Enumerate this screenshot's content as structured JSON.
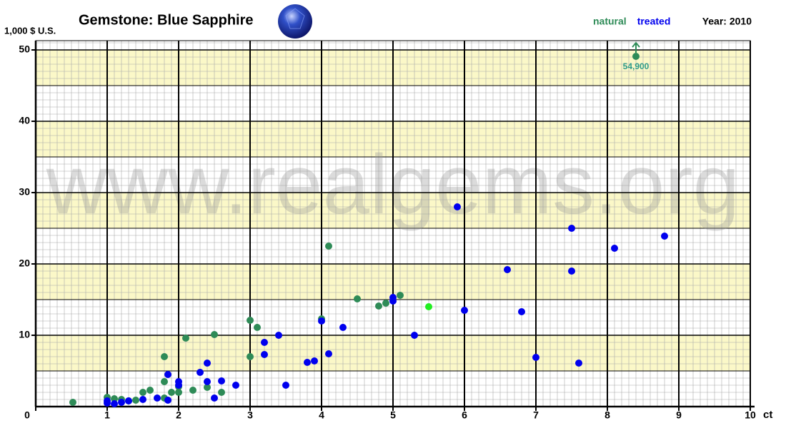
{
  "chart_data": {
    "type": "scatter",
    "title": "Gemstone: Blue Sapphire",
    "year_label": "Year: 2010",
    "y_axis_label": "1,000 $ U.S.",
    "x_axis_label": "ct",
    "watermark": "www.realgems.org",
    "xlim": [
      0,
      10
    ],
    "ylim": [
      0,
      51.3
    ],
    "xticks": [
      0,
      1,
      2,
      3,
      4,
      5,
      6,
      7,
      8,
      9,
      10
    ],
    "yticks": [
      10,
      20,
      30,
      40,
      50
    ],
    "grid": true,
    "legend": "top-right",
    "series": [
      {
        "name": "natural",
        "color": "#2e8b57",
        "x": [
          0.52,
          1,
          1.1,
          1.2,
          1.3,
          1.4,
          1.5,
          1.6,
          1.8,
          1.8,
          1.8,
          1.9,
          2,
          2,
          2.1,
          2.2,
          2.4,
          2.5,
          2.6,
          3,
          3,
          3.1,
          4,
          4.1,
          4.5,
          4.8,
          4.9,
          5.1
        ],
        "values": [
          0.6,
          1.3,
          1.1,
          1.0,
          0.8,
          0.9,
          2.0,
          2.3,
          7.0,
          3.5,
          1.2,
          2.0,
          2.0,
          2.8,
          9.6,
          2.3,
          2.7,
          10.1,
          2.0,
          12.1,
          7.0,
          11.1,
          12.3,
          22.5,
          15.1,
          14.1,
          14.5,
          15.6
        ]
      },
      {
        "name": "treated",
        "color": "#0000ee",
        "x": [
          1,
          1,
          1.1,
          1.2,
          1.3,
          1.5,
          1.7,
          1.85,
          1.85,
          2,
          2,
          2.3,
          2.4,
          2.4,
          2.5,
          2.6,
          2.8,
          3.2,
          3.2,
          3.4,
          3.5,
          3.8,
          3.9,
          4,
          4.1,
          4.3,
          5,
          5,
          5.3,
          5.9,
          6,
          6.6,
          6.8,
          7,
          7.5,
          7.5,
          7.6,
          8.1,
          8.8
        ],
        "values": [
          0.5,
          0.8,
          0.4,
          0.6,
          0.8,
          1.0,
          1.2,
          0.9,
          4.5,
          3.5,
          3.0,
          4.8,
          6.1,
          3.5,
          1.2,
          3.6,
          3.0,
          9.0,
          7.3,
          10.0,
          3.0,
          6.2,
          6.4,
          12.0,
          7.4,
          11.1,
          15.3,
          14.8,
          10.0,
          28.0,
          13.5,
          19.2,
          13.3,
          6.9,
          25.0,
          19.0,
          6.1,
          22.2,
          23.9
        ]
      }
    ],
    "highlight": {
      "x": 5.5,
      "value": 14,
      "color": "#22ee22"
    },
    "off_scale": {
      "x": 8.4,
      "value": 54.9,
      "label": "54,900",
      "color": "#2e8b57"
    }
  }
}
